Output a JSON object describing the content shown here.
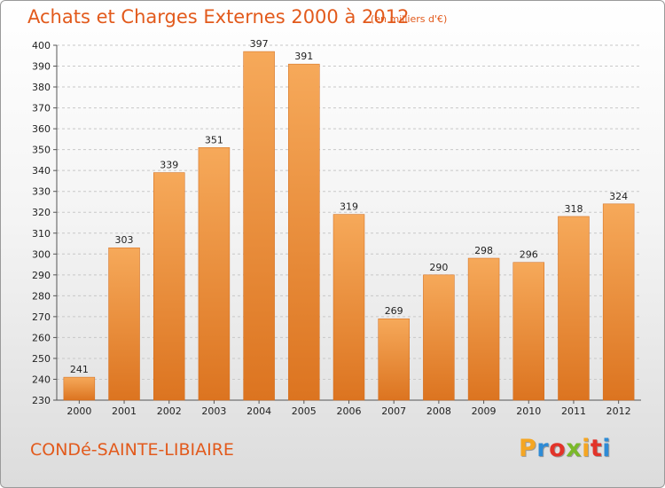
{
  "header": {
    "title": "Achats et Charges Externes 2000 à 2012",
    "unit": "(en milliers d'€)"
  },
  "footer": {
    "place": "CONDé-SAINTE-LIBIAIRE",
    "logo_letters": [
      "P",
      "r",
      "o",
      "x",
      "i",
      "t",
      "i"
    ],
    "logo_colors": [
      "#f5a623",
      "#2e8bd6",
      "#e2342a",
      "#7ab929",
      "#f5a623",
      "#e2342a",
      "#2e8bd6"
    ]
  },
  "colors": {
    "bar_light": "#f6a95a",
    "bar_dark": "#dc7420",
    "title": "#e25a1c"
  },
  "chart_data": {
    "type": "bar",
    "categories": [
      "2000",
      "2001",
      "2002",
      "2003",
      "2004",
      "2005",
      "2006",
      "2007",
      "2008",
      "2009",
      "2010",
      "2011",
      "2012"
    ],
    "values": [
      241,
      303,
      339,
      351,
      397,
      391,
      319,
      269,
      290,
      298,
      296,
      318,
      324
    ],
    "ylim": [
      230,
      400
    ],
    "yticks": [
      230,
      240,
      250,
      260,
      270,
      280,
      290,
      300,
      310,
      320,
      330,
      340,
      350,
      360,
      370,
      380,
      390,
      400
    ],
    "grid": true
  }
}
